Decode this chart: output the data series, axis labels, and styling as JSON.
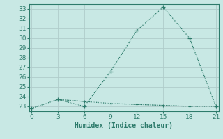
{
  "line1_x": [
    0,
    3,
    6,
    9,
    12,
    15,
    18,
    21
  ],
  "line1_y": [
    22.8,
    23.7,
    23.0,
    26.6,
    30.8,
    33.2,
    30.0,
    23.0
  ],
  "line2_x": [
    3,
    6,
    9,
    12,
    15,
    18,
    21
  ],
  "line2_y": [
    23.7,
    23.5,
    23.3,
    23.2,
    23.1,
    23.0,
    23.0
  ],
  "line_color": "#2d7b6b",
  "bg_color": "#c8e8e4",
  "grid_color": "#b0ccca",
  "xlabel": "Humidex (Indice chaleur)",
  "ylim": [
    22.5,
    33.5
  ],
  "xlim": [
    -0.3,
    21.3
  ],
  "yticks": [
    23,
    24,
    25,
    26,
    27,
    28,
    29,
    30,
    31,
    32,
    33
  ],
  "xticks": [
    0,
    3,
    6,
    9,
    12,
    15,
    18,
    21
  ],
  "xlabel_fontsize": 7,
  "tick_fontsize": 6.5
}
